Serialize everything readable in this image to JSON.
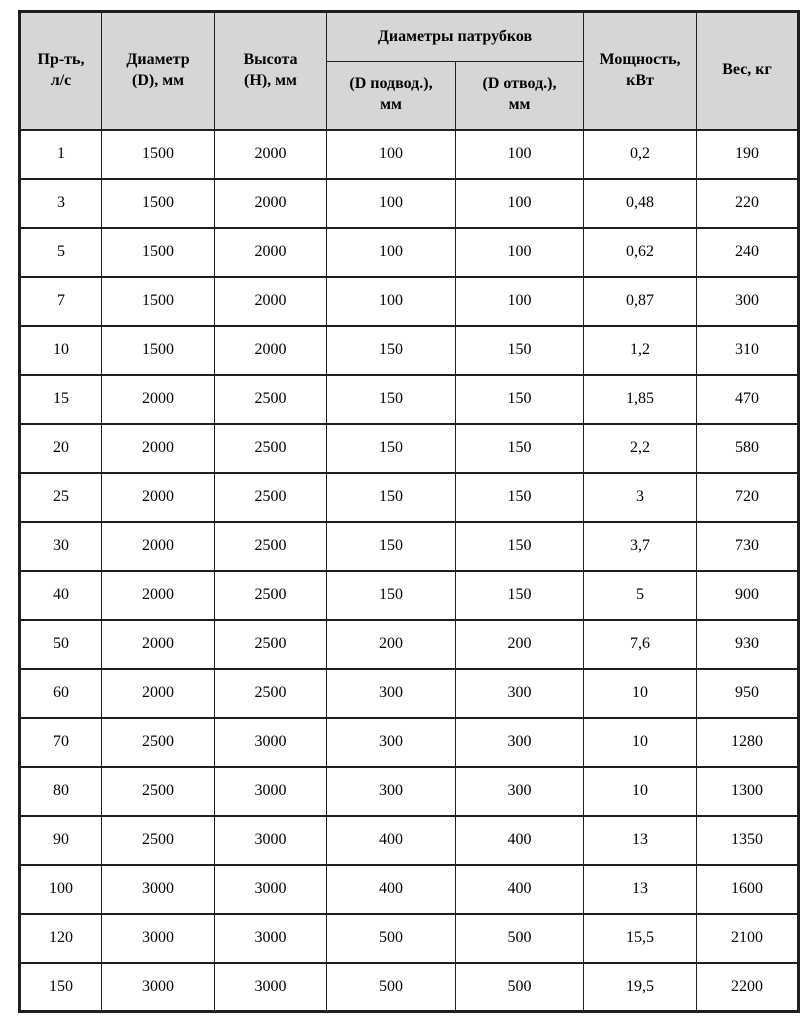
{
  "colors": {
    "header_bg": "#d6d6d6",
    "border": "#1f1f1f",
    "text": "#000000",
    "page_bg": "#ffffff"
  },
  "table": {
    "header": {
      "flow": "Пр-ть,\nл/с",
      "diameter": "Диаметр\n(D), мм",
      "height": "Высота\n(H), мм",
      "nozzles_group": "Диаметры патрубков",
      "inlet": "(D подвод.),\nмм",
      "outlet": "(D отвод.),\nмм",
      "power": "Мощность,\nкВт",
      "weight": "Вес, кг"
    },
    "rows": [
      [
        "1",
        "1500",
        "2000",
        "100",
        "100",
        "0,2",
        "190"
      ],
      [
        "3",
        "1500",
        "2000",
        "100",
        "100",
        "0,48",
        "220"
      ],
      [
        "5",
        "1500",
        "2000",
        "100",
        "100",
        "0,62",
        "240"
      ],
      [
        "7",
        "1500",
        "2000",
        "100",
        "100",
        "0,87",
        "300"
      ],
      [
        "10",
        "1500",
        "2000",
        "150",
        "150",
        "1,2",
        "310"
      ],
      [
        "15",
        "2000",
        "2500",
        "150",
        "150",
        "1,85",
        "470"
      ],
      [
        "20",
        "2000",
        "2500",
        "150",
        "150",
        "2,2",
        "580"
      ],
      [
        "25",
        "2000",
        "2500",
        "150",
        "150",
        "3",
        "720"
      ],
      [
        "30",
        "2000",
        "2500",
        "150",
        "150",
        "3,7",
        "730"
      ],
      [
        "40",
        "2000",
        "2500",
        "150",
        "150",
        "5",
        "900"
      ],
      [
        "50",
        "2000",
        "2500",
        "200",
        "200",
        "7,6",
        "930"
      ],
      [
        "60",
        "2000",
        "2500",
        "300",
        "300",
        "10",
        "950"
      ],
      [
        "70",
        "2500",
        "3000",
        "300",
        "300",
        "10",
        "1280"
      ],
      [
        "80",
        "2500",
        "3000",
        "300",
        "300",
        "10",
        "1300"
      ],
      [
        "90",
        "2500",
        "3000",
        "400",
        "400",
        "13",
        "1350"
      ],
      [
        "100",
        "3000",
        "3000",
        "400",
        "400",
        "13",
        "1600"
      ],
      [
        "120",
        "3000",
        "3000",
        "500",
        "500",
        "15,5",
        "2100"
      ],
      [
        "150",
        "3000",
        "3000",
        "500",
        "500",
        "19,5",
        "2200"
      ]
    ]
  }
}
